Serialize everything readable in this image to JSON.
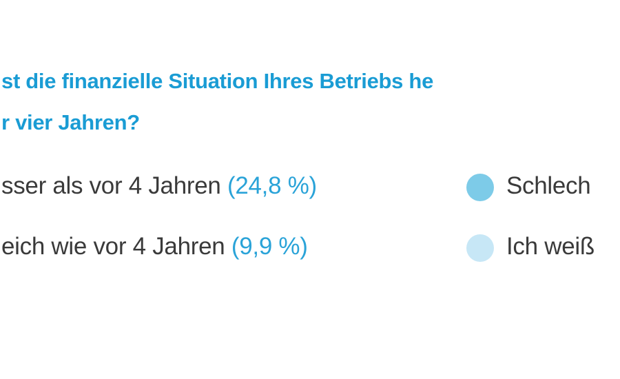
{
  "header": {
    "title_lines": [
      "st die finanzielle Situation Ihres Betriebs he",
      "r vier Jahren?"
    ]
  },
  "legend": {
    "items": [
      {
        "label": "sser als vor 4 Jahren",
        "value_label": "(24,8 %)"
      },
      {
        "label": "eich wie vor 4 Jahren",
        "value_label": "(9,9 %)"
      },
      {
        "label": "Schlech",
        "color": "#7dcbe8"
      },
      {
        "label": "Ich weiß",
        "color": "#c7e7f6"
      }
    ]
  }
}
